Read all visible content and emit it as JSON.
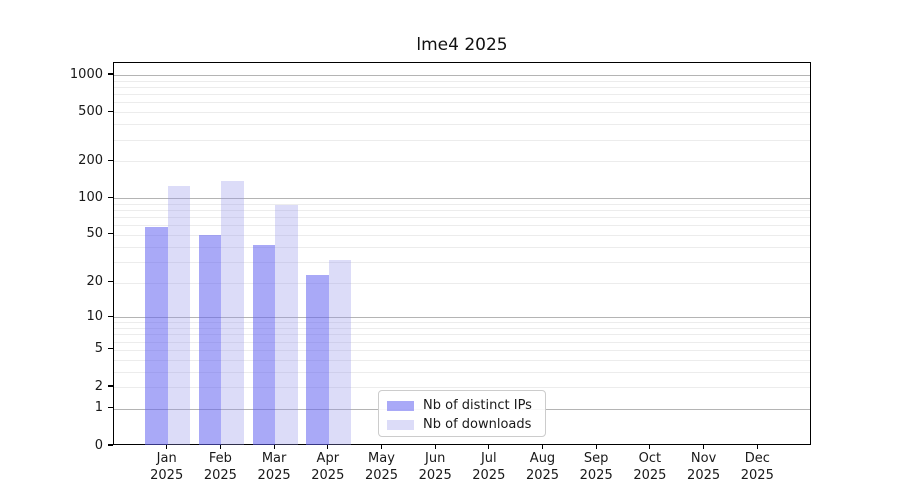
{
  "title": "lme4 2025",
  "chart_data": {
    "type": "bar",
    "title": "lme4 2025",
    "y_scale": "log1p",
    "grid": true,
    "months": [
      "Jan",
      "Feb",
      "Mar",
      "Apr",
      "May",
      "Jun",
      "Jul",
      "Aug",
      "Sep",
      "Oct",
      "Nov",
      "Dec"
    ],
    "year": "2025",
    "x_tick_labels": [
      "Jan 2025",
      "Feb 2025",
      "Mar 2025",
      "Apr 2025",
      "May 2025",
      "Jun 2025",
      "Jul 2025",
      "Aug 2025",
      "Sep 2025",
      "Oct 2025",
      "Nov 2025",
      "Dec 2025"
    ],
    "series": [
      {
        "name": "Nb of distinct IPs",
        "fill": "rgba(98, 98, 240, 0.55)",
        "values": [
          58,
          50,
          41,
          23,
          null,
          null,
          null,
          null,
          null,
          null,
          null,
          null
        ]
      },
      {
        "name": "Nb of downloads",
        "fill": "rgba(146, 146, 233, 0.32)",
        "values": [
          126,
          137,
          88,
          31,
          null,
          null,
          null,
          null,
          null,
          null,
          null,
          null
        ]
      }
    ],
    "y_ticks": [
      0,
      1,
      2,
      5,
      10,
      20,
      50,
      100,
      200,
      500,
      1000
    ],
    "y_gridlines_major": [
      1,
      10,
      100,
      1000
    ],
    "y_gridlines_minor": [
      2,
      3,
      4,
      5,
      6,
      7,
      8,
      9,
      20,
      30,
      40,
      50,
      60,
      70,
      80,
      90,
      200,
      300,
      400,
      500,
      600,
      700,
      800,
      900
    ],
    "ylim": [
      0,
      1250
    ],
    "legend_position": "lower-center",
    "colors": {
      "axis": "#000000",
      "grid_major": "#b4b4b4",
      "grid_minor": "#ececec",
      "background": "#ffffff"
    }
  }
}
